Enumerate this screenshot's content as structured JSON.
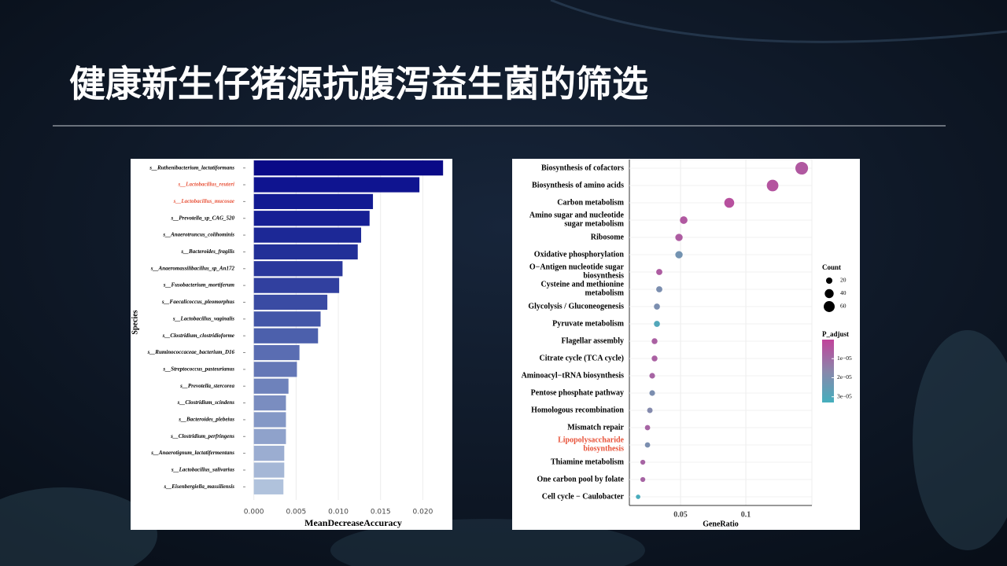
{
  "slide": {
    "title": "健康新生仔猪源抗腹泻益生菌的筛选"
  },
  "chart_data": [
    {
      "type": "hbar",
      "xlabel": "MeanDecreaseAccuracy",
      "ylabel": "Species",
      "categories": [
        "s__Ruthenibacterium_lactatiformans",
        "s__Lactobacillus_reuteri",
        "s__Lactobacillus_mucosae",
        "s__Prevotella_sp_CAG_520",
        "s__Anaerotruncus_colihominis",
        "s__Bacteroides_fragilis",
        "s__Anaeromassilibacillus_sp_An172",
        "s__Fusobacterium_mortiferum",
        "s__Faecalicoccus_pleomorphus",
        "s__Lactobacillus_vaginalis",
        "s__Clostridium_clostridioforme",
        "s__Ruminococcaceae_bacterium_D16",
        "s__Streptococcus_pasteurianus",
        "s__Prevotella_stercorea",
        "s__Clostridium_scindens",
        "s__Bacteroides_plebeius",
        "s__Clostridium_perfringens",
        "s__Anaerotignum_lactatifermentans",
        "s__Lactobacillus_salivarius",
        "s__Eisenbergiella_massiliensis"
      ],
      "values": [
        0.0224,
        0.0196,
        0.0141,
        0.0137,
        0.0127,
        0.0123,
        0.0105,
        0.0101,
        0.0087,
        0.0079,
        0.0076,
        0.0054,
        0.0051,
        0.0041,
        0.0038,
        0.0038,
        0.0038,
        0.0036,
        0.0036,
        0.0035
      ],
      "colors": [
        "#0a0a87",
        "#0f1490",
        "#121a92",
        "#161f94",
        "#1c2896",
        "#223098",
        "#2a389c",
        "#31409f",
        "#3a4ba3",
        "#4356a8",
        "#4c60ac",
        "#5a6db2",
        "#6477b6",
        "#6e82bb",
        "#7a8dc0",
        "#8498c6",
        "#8fa2cb",
        "#9badd1",
        "#a5b7d6",
        "#b0c2dc"
      ],
      "label_colors": [
        "#000000",
        "#e8533a",
        "#e8533a",
        "#000000",
        "#000000",
        "#000000",
        "#000000",
        "#000000",
        "#000000",
        "#000000",
        "#000000",
        "#000000",
        "#000000",
        "#000000",
        "#000000",
        "#000000",
        "#000000",
        "#000000",
        "#000000",
        "#000000"
      ],
      "xlim": [
        -0.0009,
        0.0235
      ],
      "xticks": [
        {
          "value": 0,
          "label": "0.000"
        },
        {
          "value": 0.005,
          "label": "0.005"
        },
        {
          "value": 0.01,
          "label": "0.010"
        },
        {
          "value": 0.015,
          "label": "0.015"
        },
        {
          "value": 0.02,
          "label": "0.020"
        }
      ],
      "grid": true
    },
    {
      "type": "dot",
      "xlabel": "GeneRatio",
      "categories": [
        "Biosynthesis of cofactors",
        "Biosynthesis of amino acids",
        "Carbon metabolism",
        "Amino sugar and nucleotide\nsugar metabolism",
        "Ribosome",
        "Oxidative phosphorylation",
        "O−Antigen nucleotide sugar\nbiosynthesis",
        "Cysteine and methionine\nmetabolism",
        "Glycolysis / Gluconeogenesis",
        "Pyruvate metabolism",
        "Flagellar assembly",
        "Citrate cycle (TCA cycle)",
        "Aminoacyl−tRNA biosynthesis",
        "Pentose phosphate pathway",
        "Homologous recombination",
        "Mismatch repair",
        "Lipopolysaccharide\nbiosynthesis",
        "Thiamine metabolism",
        "One carbon pool by folate",
        "Cell cycle − Caulobacter"
      ],
      "values": [
        0.1428,
        0.1205,
        0.0873,
        0.0524,
        0.0488,
        0.0488,
        0.0337,
        0.0337,
        0.0319,
        0.0319,
        0.0301,
        0.0301,
        0.0283,
        0.0283,
        0.0265,
        0.0247,
        0.0247,
        0.0211,
        0.0211,
        0.0175
      ],
      "counts": [
        80,
        67,
        49,
        29,
        27,
        27,
        19,
        19,
        18,
        18,
        17,
        17,
        16,
        16,
        15,
        14,
        14,
        12,
        12,
        10
      ],
      "p_adjust": [
        5e-06,
        4e-06,
        3e-06,
        5e-06,
        6e-06,
        2.2e-05,
        6e-06,
        2e-05,
        2e-05,
        3e-05,
        7e-06,
        7e-06,
        8e-06,
        2e-05,
        1.8e-05,
        8e-06,
        2e-05,
        8e-06,
        8e-06,
        3.2e-05
      ],
      "label_colors": [
        "#000000",
        "#000000",
        "#000000",
        "#000000",
        "#000000",
        "#000000",
        "#000000",
        "#000000",
        "#000000",
        "#000000",
        "#000000",
        "#000000",
        "#000000",
        "#000000",
        "#000000",
        "#000000",
        "#e8533a",
        "#000000",
        "#000000",
        "#000000"
      ],
      "xlim": [
        0.0108,
        0.1506
      ],
      "xticks": [
        0.05,
        0.1
      ],
      "grid": true,
      "size_legend": {
        "title": "Count",
        "values": [
          20,
          40,
          60
        ]
      },
      "color_legend": {
        "title": "P_adjust",
        "lim": [
          0,
          3.3e-05
        ],
        "colormap": [
          "#c1449b",
          "#8a86ab",
          "#45aebd"
        ],
        "ticks": [
          {
            "value": 1e-05,
            "label": "1e−05"
          },
          {
            "value": 2e-05,
            "label": "2e−05"
          },
          {
            "value": 3e-05,
            "label": "3e−05"
          }
        ]
      }
    }
  ]
}
